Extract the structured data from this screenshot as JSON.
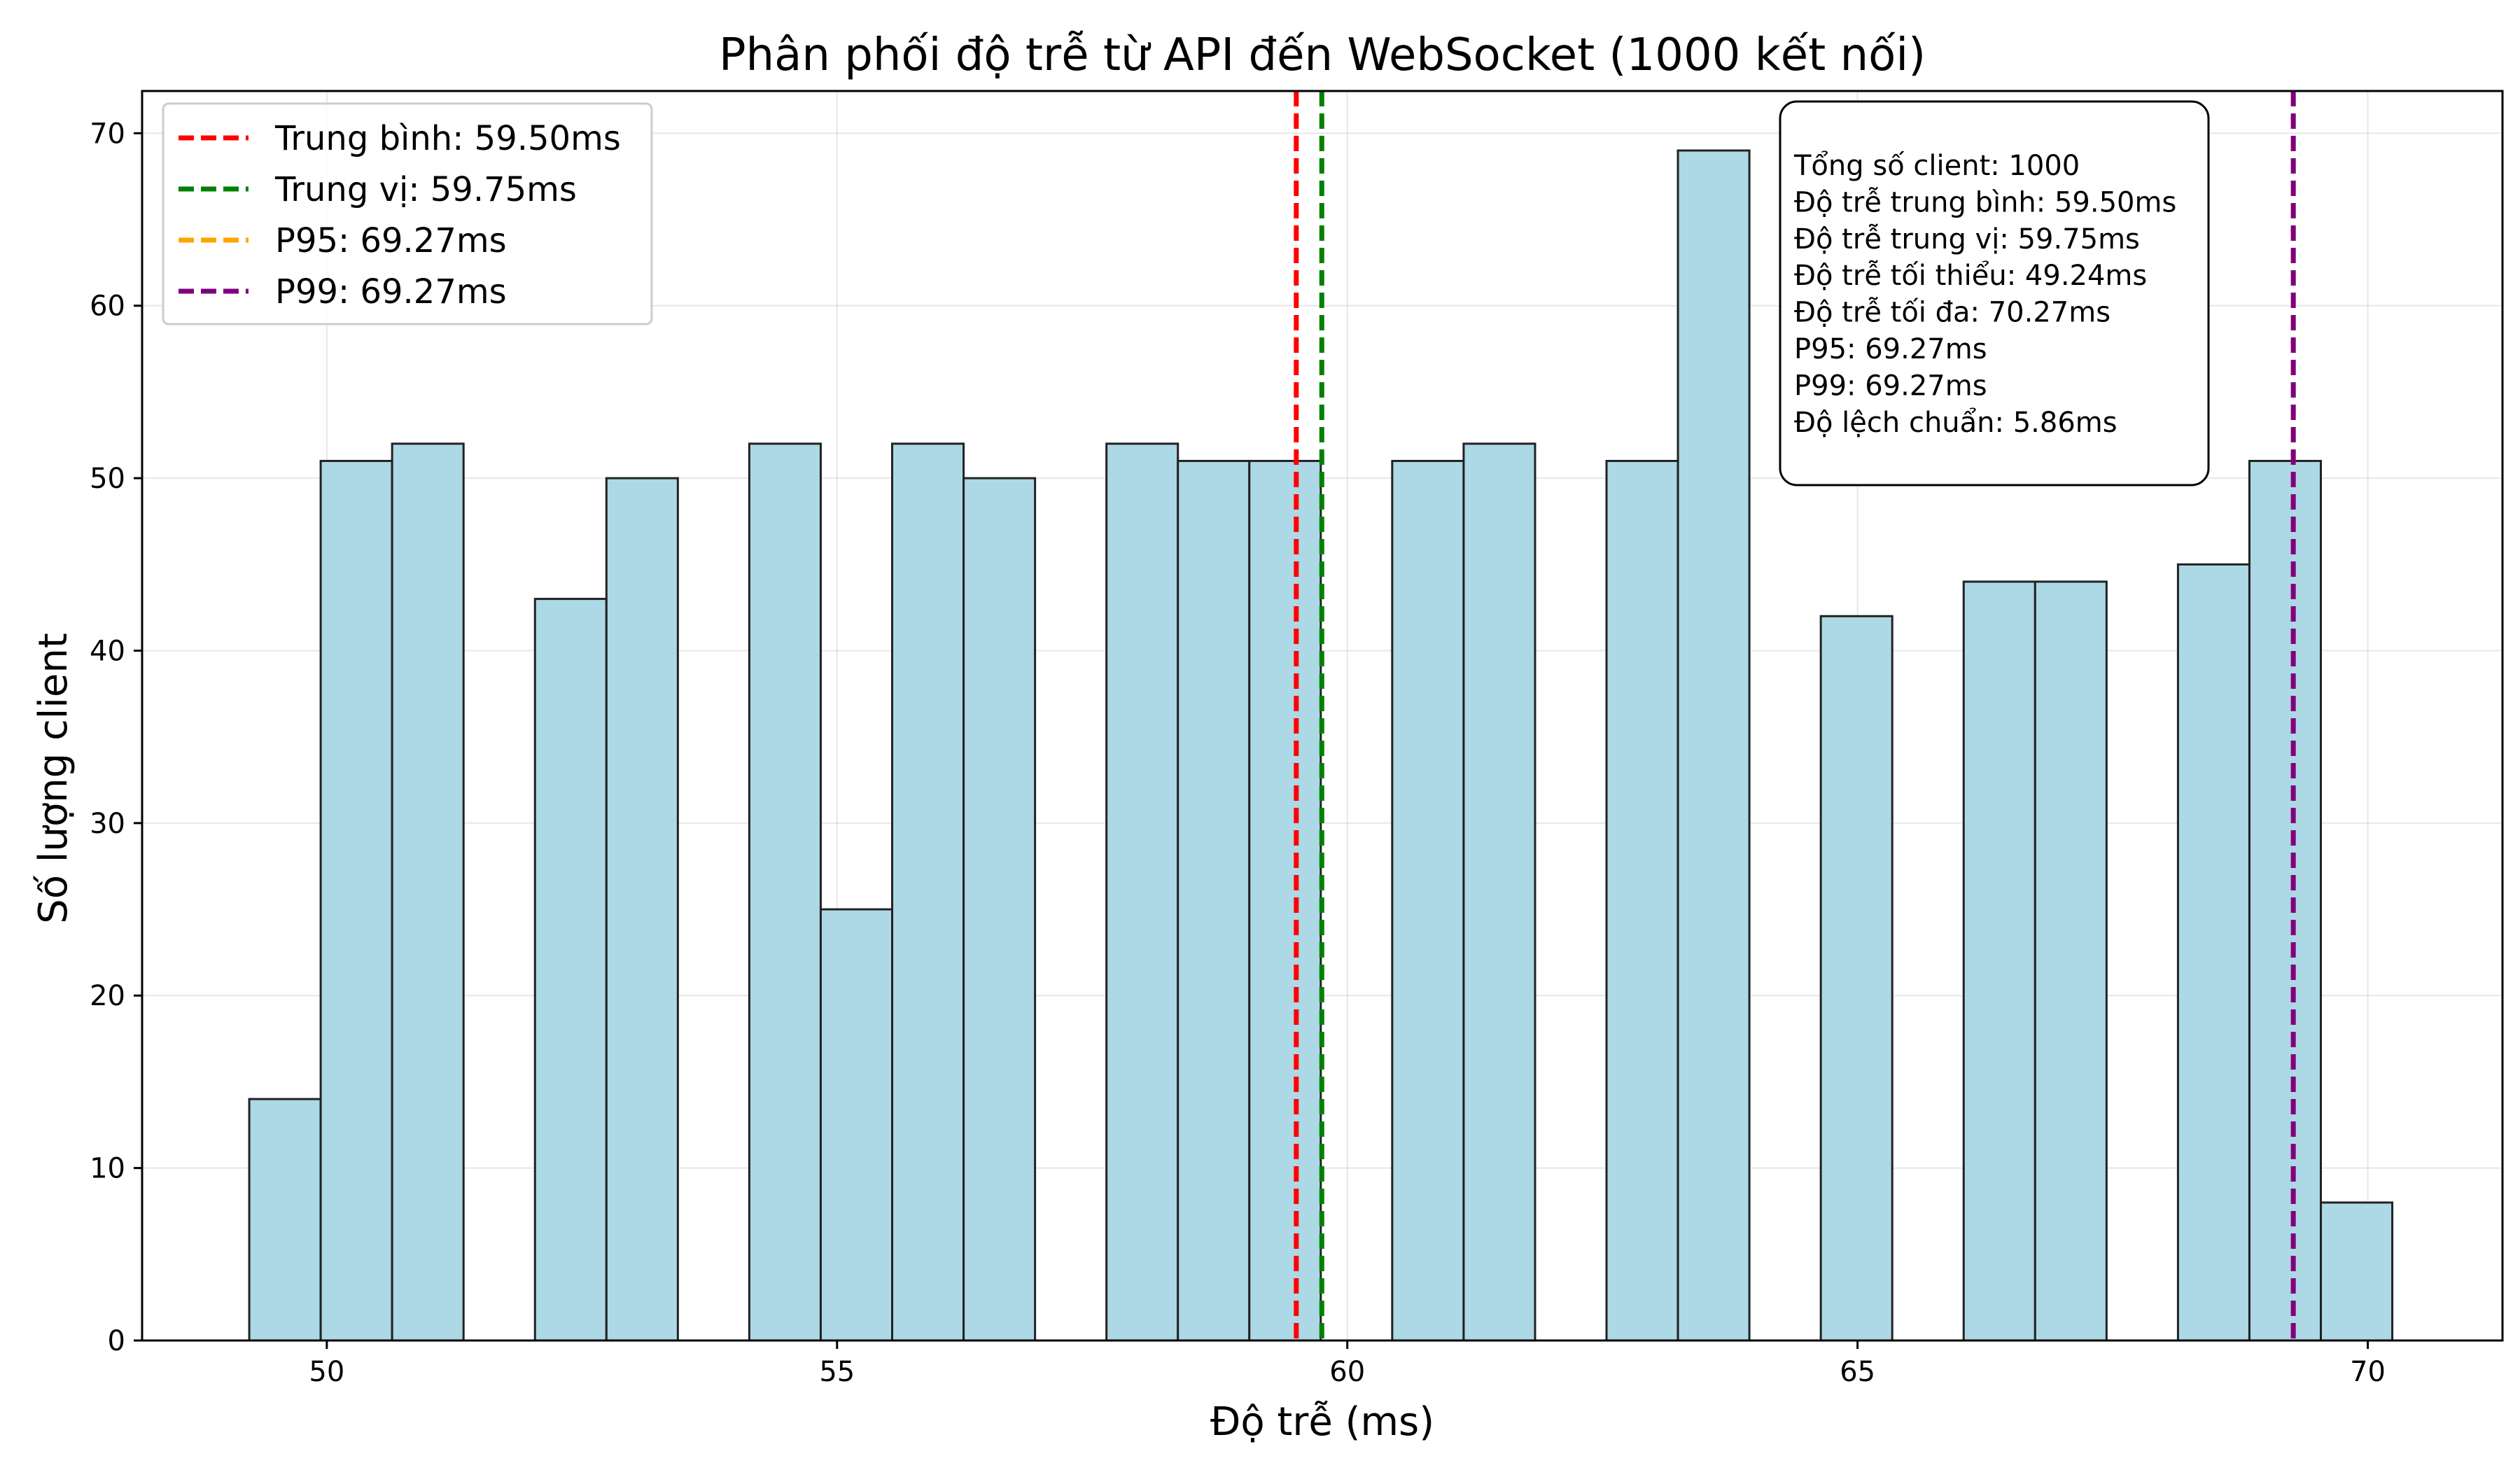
{
  "chart_data": {
    "type": "histogram",
    "title": "Phân phối độ trễ từ API đến WebSocket (1000 kết nối)",
    "xlabel": "Độ trễ (ms)",
    "ylabel": "Số lượng client",
    "xlim": [
      48.19,
      71.32
    ],
    "ylim": [
      0,
      72.45
    ],
    "x_ticks": [
      50,
      55,
      60,
      65,
      70
    ],
    "y_ticks": [
      0,
      10,
      20,
      30,
      40,
      50,
      60,
      70
    ],
    "grid": true,
    "bin_start": 49.24,
    "bin_width": 0.7,
    "bins": [
      {
        "x0": 49.24,
        "x1": 49.94,
        "count": 14
      },
      {
        "x0": 49.94,
        "x1": 50.64,
        "count": 51
      },
      {
        "x0": 50.64,
        "x1": 51.34,
        "count": 52
      },
      {
        "x0": 51.34,
        "x1": 52.04,
        "count": 0
      },
      {
        "x0": 52.04,
        "x1": 52.74,
        "count": 43
      },
      {
        "x0": 52.74,
        "x1": 53.44,
        "count": 50
      },
      {
        "x0": 53.44,
        "x1": 54.14,
        "count": 0
      },
      {
        "x0": 54.14,
        "x1": 54.84,
        "count": 52
      },
      {
        "x0": 54.84,
        "x1": 55.54,
        "count": 25
      },
      {
        "x0": 55.54,
        "x1": 56.24,
        "count": 52
      },
      {
        "x0": 56.24,
        "x1": 56.94,
        "count": 50
      },
      {
        "x0": 56.94,
        "x1": 57.64,
        "count": 0
      },
      {
        "x0": 57.64,
        "x1": 58.34,
        "count": 52
      },
      {
        "x0": 58.34,
        "x1": 59.04,
        "count": 51
      },
      {
        "x0": 59.04,
        "x1": 59.74,
        "count": 51
      },
      {
        "x0": 59.74,
        "x1": 60.44,
        "count": 0
      },
      {
        "x0": 60.44,
        "x1": 61.14,
        "count": 51
      },
      {
        "x0": 61.14,
        "x1": 61.84,
        "count": 52
      },
      {
        "x0": 61.84,
        "x1": 62.54,
        "count": 0
      },
      {
        "x0": 62.54,
        "x1": 63.24,
        "count": 51
      },
      {
        "x0": 63.24,
        "x1": 63.94,
        "count": 69
      },
      {
        "x0": 63.94,
        "x1": 64.64,
        "count": 0
      },
      {
        "x0": 64.64,
        "x1": 65.34,
        "count": 42
      },
      {
        "x0": 65.34,
        "x1": 66.04,
        "count": 0
      },
      {
        "x0": 66.04,
        "x1": 66.74,
        "count": 44
      },
      {
        "x0": 66.74,
        "x1": 67.44,
        "count": 44
      },
      {
        "x0": 67.44,
        "x1": 68.14,
        "count": 0
      },
      {
        "x0": 68.14,
        "x1": 68.84,
        "count": 45
      },
      {
        "x0": 68.84,
        "x1": 69.54,
        "count": 51
      },
      {
        "x0": 69.54,
        "x1": 70.24,
        "count": 8
      }
    ],
    "bar_color": "#add8e6",
    "bar_edge_color": "#222222",
    "reference_lines": [
      {
        "label": "Trung bình: 59.50ms",
        "x": 59.5,
        "color": "#ff0000"
      },
      {
        "label": "Trung vị: 59.75ms",
        "x": 59.75,
        "color": "#008000"
      },
      {
        "label": "P95: 69.27ms",
        "x": 69.27,
        "color": "#ffa500"
      },
      {
        "label": "P99: 69.27ms",
        "x": 69.27,
        "color": "#800080"
      }
    ],
    "legend_position": "top-left",
    "stats_box": [
      "Tổng số client: 1000",
      "Độ trễ trung bình: 59.50ms",
      "Độ trễ trung vị: 59.75ms",
      "Độ trễ tối thiểu: 49.24ms",
      "Độ trễ tối đa: 70.27ms",
      "P95: 69.27ms",
      "P99: 69.27ms",
      "Độ lệch chuẩn: 5.86ms"
    ],
    "stats_box_position": "top-right"
  }
}
